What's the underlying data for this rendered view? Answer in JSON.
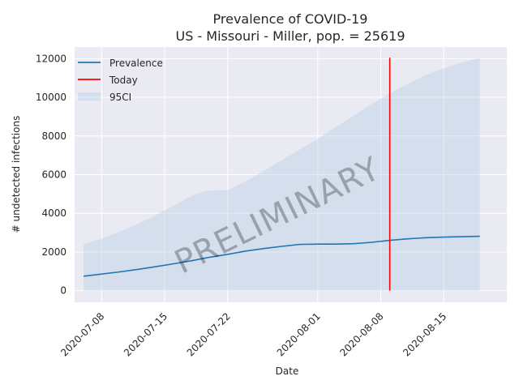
{
  "chart_data": {
    "type": "line",
    "title": "Prevalence of COVID-19",
    "subtitle": "US - Missouri - Miller, pop. = 25619",
    "xlabel": "Date",
    "ylabel": "# undetected infections",
    "x_ticks": [
      "2020-07-08",
      "2020-07-15",
      "2020-07-22",
      "2020-08-01",
      "2020-08-08",
      "2020-08-15"
    ],
    "y_ticks": [
      0,
      2000,
      4000,
      6000,
      8000,
      10000,
      12000
    ],
    "xlim": [
      "2020-07-05",
      "2020-08-22"
    ],
    "ylim": [
      -600,
      12600
    ],
    "grid": true,
    "legend": {
      "placement": "top-left",
      "entries": [
        "Prevalence",
        "Today",
        "95CI"
      ]
    },
    "watermark": "PRELIMINARY",
    "today": "2020-08-09",
    "today_range": [
      0,
      12050
    ],
    "series": [
      {
        "name": "Prevalence",
        "kind": "line",
        "color": "#1f77b4",
        "points": [
          [
            "2020-07-06",
            750
          ],
          [
            "2020-07-08",
            860
          ],
          [
            "2020-07-10",
            970
          ],
          [
            "2020-07-12",
            1100
          ],
          [
            "2020-07-14",
            1240
          ],
          [
            "2020-07-16",
            1390
          ],
          [
            "2020-07-18",
            1550
          ],
          [
            "2020-07-20",
            1730
          ],
          [
            "2020-07-22",
            1880
          ],
          [
            "2020-07-24",
            2050
          ],
          [
            "2020-07-26",
            2180
          ],
          [
            "2020-07-28",
            2290
          ],
          [
            "2020-07-30",
            2390
          ],
          [
            "2020-08-01",
            2410
          ],
          [
            "2020-08-03",
            2410
          ],
          [
            "2020-08-05",
            2430
          ],
          [
            "2020-08-07",
            2500
          ],
          [
            "2020-08-09",
            2600
          ],
          [
            "2020-08-11",
            2680
          ],
          [
            "2020-08-13",
            2740
          ],
          [
            "2020-08-15",
            2770
          ],
          [
            "2020-08-17",
            2790
          ],
          [
            "2020-08-19",
            2810
          ]
        ]
      },
      {
        "name": "95CI",
        "kind": "band",
        "color": "#b0c9e5",
        "points": [
          [
            "2020-07-06",
            0,
            2400
          ],
          [
            "2020-07-08",
            0,
            2700
          ],
          [
            "2020-07-10",
            0,
            3050
          ],
          [
            "2020-07-12",
            0,
            3450
          ],
          [
            "2020-07-14",
            0,
            3900
          ],
          [
            "2020-07-16",
            0,
            4400
          ],
          [
            "2020-07-18",
            0,
            4900
          ],
          [
            "2020-07-19",
            0,
            5100
          ],
          [
            "2020-07-20",
            0,
            5180
          ],
          [
            "2020-07-22",
            0,
            5200
          ],
          [
            "2020-07-24",
            0,
            5650
          ],
          [
            "2020-07-26",
            0,
            6200
          ],
          [
            "2020-07-28",
            0,
            6750
          ],
          [
            "2020-07-30",
            0,
            7300
          ],
          [
            "2020-08-01",
            0,
            7850
          ],
          [
            "2020-08-03",
            0,
            8450
          ],
          [
            "2020-08-05",
            0,
            9050
          ],
          [
            "2020-08-07",
            0,
            9650
          ],
          [
            "2020-08-09",
            0,
            10200
          ],
          [
            "2020-08-11",
            0,
            10700
          ],
          [
            "2020-08-13",
            0,
            11150
          ],
          [
            "2020-08-15",
            0,
            11500
          ],
          [
            "2020-08-17",
            0,
            11800
          ],
          [
            "2020-08-19",
            0,
            12050
          ]
        ]
      },
      {
        "name": "Today",
        "kind": "vline",
        "color": "#ff0000"
      }
    ]
  }
}
